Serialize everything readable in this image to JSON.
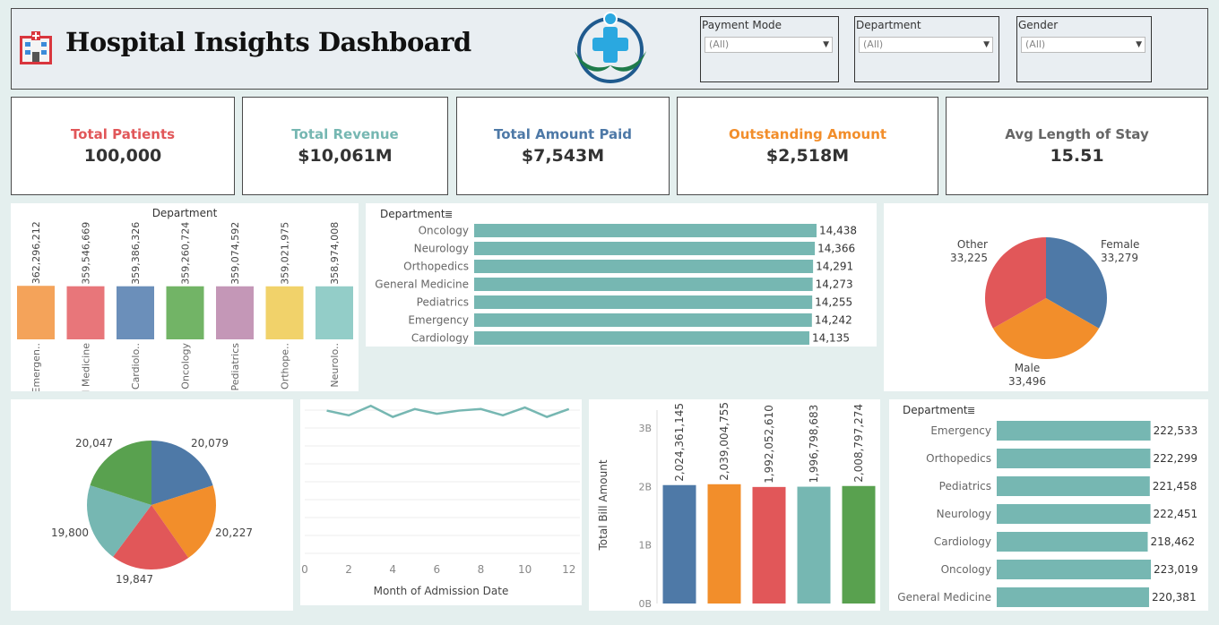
{
  "header": {
    "title": "Hospital Insights Dashboard",
    "filters": [
      {
        "label": "Payment Mode",
        "value": "(All)"
      },
      {
        "label": "Department",
        "value": "(All)"
      },
      {
        "label": "Gender",
        "value": "(All)"
      }
    ]
  },
  "kpis": [
    {
      "label": "Total Patients",
      "value": "100,000",
      "color": "#e15759"
    },
    {
      "label": "Total Revenue",
      "value": "$10,061M",
      "color": "#76b7b2"
    },
    {
      "label": "Total Amount Paid",
      "value": "$7,543M",
      "color": "#4e79a7"
    },
    {
      "label": "Outstanding Amount",
      "value": "$2,518M",
      "color": "#f28e2b"
    },
    {
      "label": "Avg Length of Stay",
      "value": "15.51",
      "color": "#666666"
    }
  ],
  "chart_data": [
    {
      "type": "bar",
      "title": "Department",
      "categories": [
        "Emergen..",
        "General Medicine",
        "Cardiolo..",
        "Oncology",
        "Pediatrics",
        "Orthope..",
        "Neurolo.."
      ],
      "values": [
        362296212,
        359546669,
        359386326,
        359260724,
        359074592,
        359021975,
        358974008
      ],
      "value_labels": [
        "362,296,212",
        "359,546,669",
        "359,386,326",
        "359,260,724",
        "359,074,592",
        "359,021,975",
        "358,974,008"
      ],
      "colors": [
        "#f4a35a",
        "#e8767a",
        "#6b8fba",
        "#72b466",
        "#c497b7",
        "#f1d26a",
        "#93cdc8"
      ]
    },
    {
      "type": "bar",
      "orientation": "horizontal",
      "header": "Department",
      "categories": [
        "Oncology",
        "Neurology",
        "Orthopedics",
        "General Medicine",
        "Pediatrics",
        "Emergency",
        "Cardiology"
      ],
      "values": [
        14438,
        14366,
        14291,
        14273,
        14255,
        14242,
        14135
      ],
      "value_labels": [
        "14,438",
        "14,366",
        "14,291",
        "14,273",
        "14,255",
        "14,242",
        "14,135"
      ],
      "color": "#76b7b2"
    },
    {
      "type": "pie",
      "slices": [
        {
          "label": "Female",
          "value": 33279,
          "value_label": "33,279",
          "color": "#4e79a7"
        },
        {
          "label": "Male",
          "value": 33496,
          "value_label": "33,496",
          "color": "#f28e2b"
        },
        {
          "label": "Other",
          "value": 33225,
          "value_label": "33,225",
          "color": "#e15759"
        }
      ]
    },
    {
      "type": "pie",
      "slices": [
        {
          "value": 20079,
          "value_label": "20,079",
          "color": "#4e79a7"
        },
        {
          "value": 20227,
          "value_label": "20,227",
          "color": "#f28e2b"
        },
        {
          "value": 19847,
          "value_label": "19,847",
          "color": "#e15759"
        },
        {
          "value": 19800,
          "value_label": "19,800",
          "color": "#76b7b2"
        },
        {
          "value": 20047,
          "value_label": "20,047",
          "color": "#59a14f"
        }
      ]
    },
    {
      "type": "line",
      "xlabel": "Month of Admission Date",
      "xlim": [
        0,
        12.5
      ],
      "xticks": [
        "0",
        "2",
        "4",
        "6",
        "8",
        "10",
        "12"
      ],
      "ylim": [
        0,
        1
      ],
      "x": [
        1,
        2,
        3,
        4,
        5,
        6,
        7,
        8,
        9,
        10,
        11,
        12
      ],
      "y": [
        0.94,
        0.91,
        0.97,
        0.9,
        0.95,
        0.92,
        0.94,
        0.95,
        0.91,
        0.96,
        0.9,
        0.95
      ],
      "color": "#76b7b2"
    },
    {
      "type": "bar",
      "ylabel": "Total Bill Amount",
      "ylim": [
        0,
        3000000000
      ],
      "yticks": [
        "0B",
        "1B",
        "2B",
        "3B"
      ],
      "values": [
        2024361145,
        2039004755,
        1992052610,
        1996798683,
        2008797274
      ],
      "value_labels": [
        "2,024,361,145",
        "2,039,004,755",
        "1,992,052,610",
        "1,996,798,683",
        "2,008,797,274"
      ],
      "colors": [
        "#4e79a7",
        "#f28e2b",
        "#e15759",
        "#76b7b2",
        "#59a14f"
      ]
    },
    {
      "type": "bar",
      "orientation": "horizontal",
      "header": "Department",
      "categories": [
        "Emergency",
        "Orthopedics",
        "Pediatrics",
        "Neurology",
        "Cardiology",
        "Oncology",
        "General Medicine"
      ],
      "values": [
        222533,
        222299,
        221458,
        222451,
        218462,
        223019,
        220381
      ],
      "value_labels": [
        "222,533",
        "222,299",
        "221,458",
        "222,451",
        "218,462",
        "223,019",
        "220,381"
      ],
      "color": "#76b7b2"
    }
  ]
}
